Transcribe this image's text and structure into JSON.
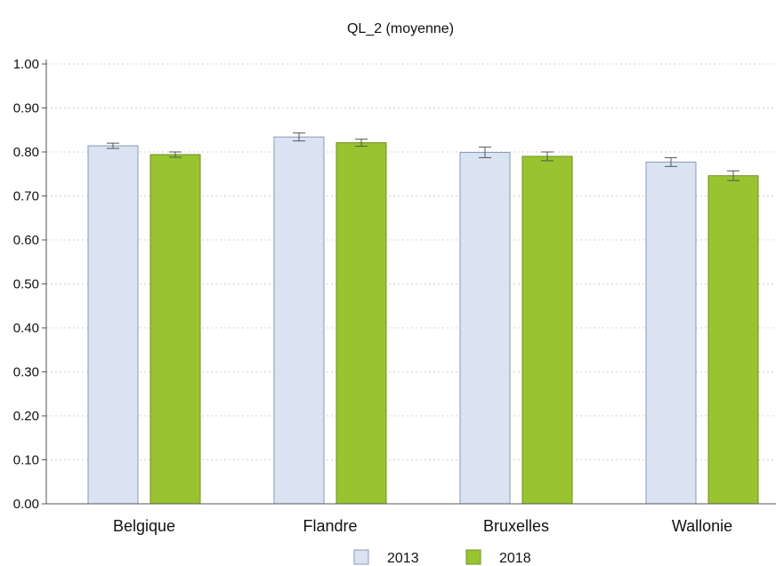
{
  "chart_data": {
    "type": "bar",
    "title": "QL_2  (moyenne)",
    "xlabel": "",
    "ylabel": "",
    "categories": [
      "Belgique",
      "Flandre",
      "Bruxelles",
      "Wallonie"
    ],
    "series": [
      {
        "name": "2013",
        "color": "#d9e3f2",
        "values": [
          0.814,
          0.834,
          0.799,
          0.777
        ],
        "err_low": [
          0.808,
          0.825,
          0.787,
          0.767
        ],
        "err_high": [
          0.82,
          0.843,
          0.811,
          0.787
        ]
      },
      {
        "name": "2018",
        "color": "#99c430",
        "values": [
          0.794,
          0.821,
          0.79,
          0.746
        ],
        "err_low": [
          0.788,
          0.813,
          0.78,
          0.735
        ],
        "err_high": [
          0.8,
          0.829,
          0.8,
          0.757
        ]
      }
    ],
    "ylim": [
      0,
      1.0
    ],
    "yticks": [
      "0.00",
      "0.10",
      "0.20",
      "0.30",
      "0.40",
      "0.50",
      "0.60",
      "0.70",
      "0.80",
      "0.90",
      "1.00"
    ],
    "grid": true,
    "error_bars": true,
    "legend_position": "bottom-center",
    "axis_color": "#555555",
    "grid_color": "#d0d0d0"
  }
}
